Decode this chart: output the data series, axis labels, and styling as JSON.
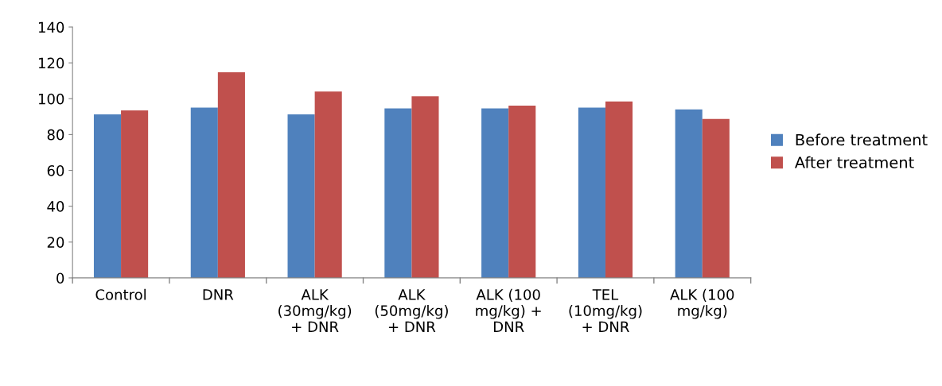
{
  "chart_data": {
    "type": "bar",
    "categories": [
      "Control",
      "DNR",
      "ALK\n(30mg/kg)\n+ DNR",
      "ALK\n(50mg/kg)\n+ DNR",
      "ALK (100\nmg/kg) +\nDNR",
      "TEL\n(10mg/kg)\n+ DNR",
      "ALK (100\nmg/kg)"
    ],
    "series": [
      {
        "name": "Before treatment",
        "color": "#4f81bd",
        "values": [
          91.3,
          95.0,
          91.3,
          94.6,
          94.6,
          95.0,
          94.0
        ]
      },
      {
        "name": "After treatment",
        "color": "#c0504d",
        "values": [
          93.5,
          114.8,
          104.0,
          101.3,
          96.1,
          98.5,
          88.7
        ]
      }
    ],
    "ylim": [
      0,
      140
    ],
    "yticks": [
      0,
      20,
      40,
      60,
      80,
      100,
      120,
      140
    ],
    "grid": false,
    "legend": "right"
  }
}
